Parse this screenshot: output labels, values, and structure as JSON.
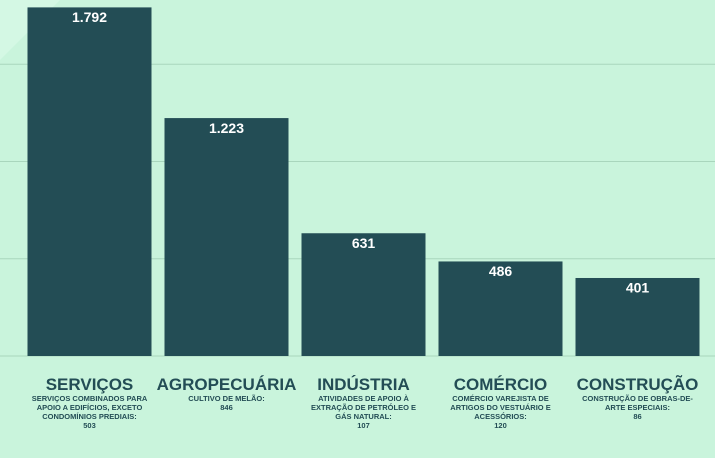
{
  "chart_data": {
    "type": "bar",
    "categories": [
      "SERVIÇOS",
      "AGROPECUÁRIA",
      "INDÚSTRIA",
      "COMÉRCIO",
      "CONSTRUÇÃO"
    ],
    "values": [
      1792,
      1223,
      631,
      486,
      401
    ],
    "value_labels": [
      "1.792",
      "1.223",
      "631",
      "486",
      "401"
    ],
    "descriptions": [
      "SERVIÇOS COMBINADOS PARA APOIO A EDIFÍCIOS, EXCETO CONDOMÍNIOS PREDIAIS:",
      "CULTIVO DE MELÃO:",
      "ATIVIDADES DE APOIO À EXTRAÇÃO DE PETRÓLEO E GÁS NATURAL:",
      "COMÉRCIO VAREJISTA DE ARTIGOS DO VESTUÁRIO E ACESSÓRIOS:",
      "CONSTRUÇÃO DE OBRAS-DE-ARTE ESPECIAIS:"
    ],
    "description_values": [
      503,
      846,
      107,
      120,
      86
    ],
    "color": "#234d55",
    "ylim": [
      0,
      1830
    ],
    "yticks": [
      0,
      500,
      1000,
      1500
    ],
    "grid": true
  }
}
